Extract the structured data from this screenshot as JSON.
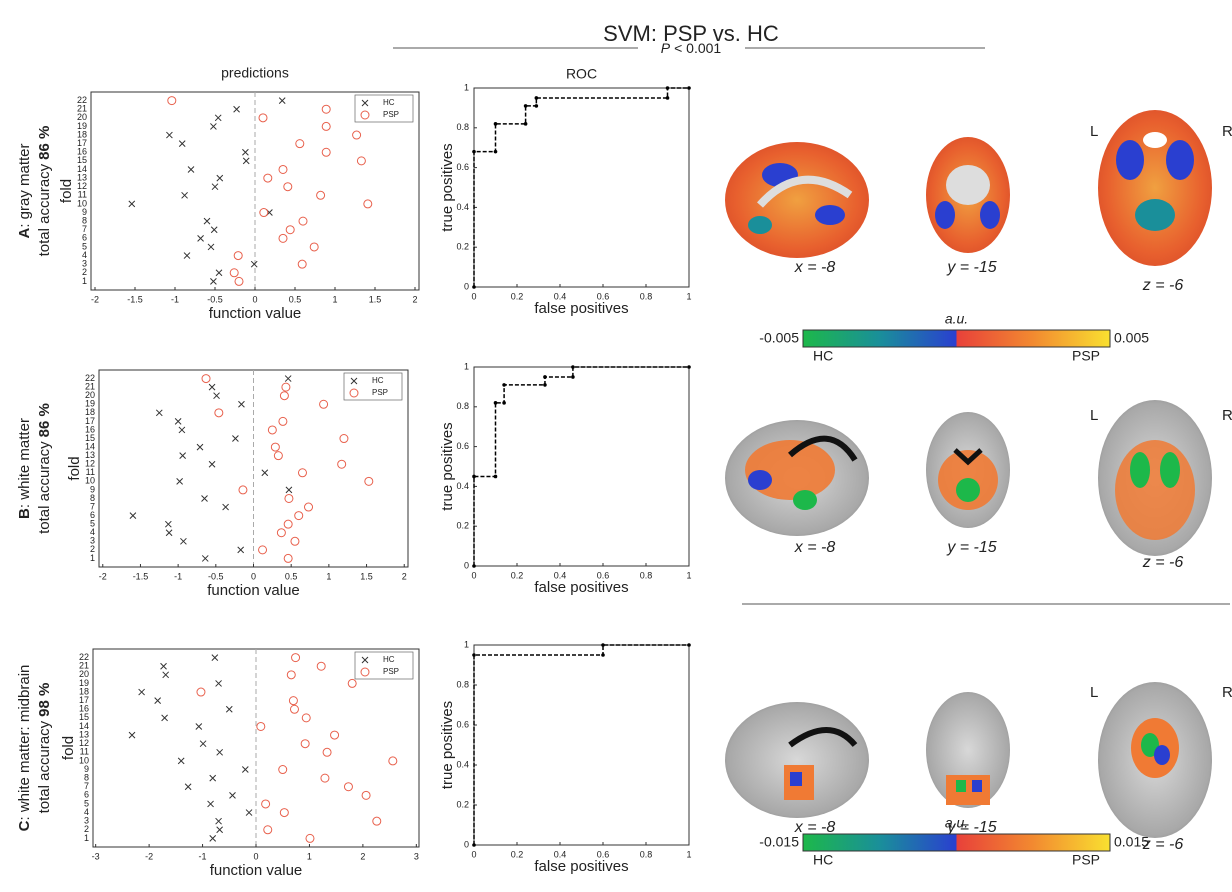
{
  "figure": {
    "title": "SVM: PSP vs. HC",
    "p_symbol": "P",
    "p_text": "< 0.001",
    "brain_rows": [
      {
        "labels": [
          "x = -8",
          "y = -15",
          "z = -6"
        ],
        "left": "L",
        "right": "R"
      },
      {
        "labels": [
          "x = -8",
          "y = -15",
          "z = -6"
        ],
        "left": "L",
        "right": "R"
      },
      {
        "labels": [
          "x = -8",
          "y = -15",
          "z = -6"
        ],
        "left": "L",
        "right": "R"
      }
    ],
    "colorbars": [
      {
        "title": "a.u.",
        "min": -0.005,
        "max": 0.005,
        "low": "HC",
        "high": "PSP"
      },
      {
        "title": "a.u.",
        "min": -0.015,
        "max": 0.015,
        "low": "HC",
        "high": "PSP"
      }
    ]
  },
  "chart_data": [
    {
      "type": "scatter",
      "title": "predictions",
      "panel": "A",
      "ylabel_text": ": gray matter",
      "accuracy_text": "total accuracy",
      "accuracy": "86 %",
      "ylabel": "fold",
      "xlabel": "function value",
      "categories": [
        1,
        2,
        3,
        4,
        5,
        6,
        7,
        8,
        9,
        10,
        11,
        12,
        13,
        14,
        15,
        16,
        17,
        18,
        19,
        20,
        21,
        22
      ],
      "series": [
        {
          "name": "HC",
          "marker": "x",
          "color": "#333333",
          "values": [
            -0.52,
            -0.45,
            -0.01,
            -0.85,
            -0.55,
            -0.68,
            -0.51,
            -0.6,
            0.18,
            -1.54,
            -0.88,
            -0.5,
            -0.44,
            -0.8,
            -0.11,
            -0.12,
            -0.91,
            -1.07,
            -0.52,
            -0.46,
            -0.23,
            0.34
          ]
        },
        {
          "name": "PSP",
          "marker": "o",
          "color": "#e8604c",
          "values": [
            -0.2,
            -0.26,
            0.59,
            -0.21,
            0.74,
            0.35,
            0.44,
            0.6,
            0.11,
            1.41,
            0.82,
            0.41,
            0.16,
            0.35,
            1.33,
            0.89,
            0.56,
            1.27,
            0.89,
            0.1,
            0.89,
            -1.04
          ]
        }
      ],
      "xlim": [
        -2.05,
        2.05
      ],
      "xticks": [
        -2,
        -1.5,
        -1,
        -0.5,
        0,
        0.5,
        1,
        1.5,
        2
      ]
    },
    {
      "type": "line",
      "title": "ROC",
      "xlabel": "false positives",
      "ylabel": "true positives",
      "x": [
        0,
        0,
        0.1,
        0.1,
        0.24,
        0.24,
        0.29,
        0.29,
        0.9,
        0.9,
        1
      ],
      "series": [
        {
          "color": "#000000",
          "values": [
            0,
            0.68,
            0.68,
            0.82,
            0.82,
            0.91,
            0.91,
            0.95,
            0.95,
            1,
            1
          ]
        }
      ],
      "xlim": [
        0,
        1
      ],
      "ylim": [
        0,
        1
      ],
      "xticks": [
        0,
        0.2,
        0.4,
        0.6,
        0.8,
        1
      ],
      "yticks": [
        0,
        0.2,
        0.4,
        0.6,
        0.8,
        1
      ]
    },
    {
      "type": "scatter",
      "panel": "B",
      "ylabel_text": ": white matter",
      "accuracy_text": "total accuracy",
      "accuracy": "86 %",
      "ylabel": "fold",
      "xlabel": "function value",
      "categories": [
        1,
        2,
        3,
        4,
        5,
        6,
        7,
        8,
        9,
        10,
        11,
        12,
        13,
        14,
        15,
        16,
        17,
        18,
        19,
        20,
        21,
        22
      ],
      "series": [
        {
          "name": "HC",
          "marker": "x",
          "color": "#333333",
          "values": [
            -0.64,
            -0.17,
            -0.93,
            -1.12,
            -1.13,
            -1.6,
            -0.37,
            -0.65,
            0.47,
            -0.98,
            0.15,
            -0.55,
            -0.94,
            -0.71,
            -0.24,
            -0.95,
            -1.0,
            -1.25,
            -0.16,
            -0.49,
            -0.55,
            0.46
          ]
        },
        {
          "name": "PSP",
          "marker": "o",
          "color": "#e8604c",
          "values": [
            0.46,
            0.12,
            0.55,
            0.37,
            0.46,
            0.6,
            0.73,
            0.47,
            -0.14,
            1.53,
            0.65,
            1.17,
            0.33,
            0.29,
            1.2,
            0.25,
            0.39,
            -0.46,
            0.93,
            0.41,
            0.43,
            -0.63
          ]
        }
      ],
      "xlim": [
        -2.05,
        2.05
      ],
      "xticks": [
        -2,
        -1.5,
        -1,
        -0.5,
        0,
        0.5,
        1,
        1.5,
        2
      ]
    },
    {
      "type": "line",
      "xlabel": "false positives",
      "ylabel": "true positives",
      "x": [
        0,
        0,
        0.1,
        0.1,
        0.14,
        0.14,
        0.33,
        0.33,
        0.46,
        0.46,
        1
      ],
      "series": [
        {
          "color": "#000000",
          "values": [
            0,
            0.45,
            0.45,
            0.82,
            0.82,
            0.91,
            0.91,
            0.95,
            0.95,
            1,
            1
          ]
        }
      ],
      "xlim": [
        0,
        1
      ],
      "ylim": [
        0,
        1
      ],
      "xticks": [
        0,
        0.2,
        0.4,
        0.6,
        0.8,
        1
      ],
      "yticks": [
        0,
        0.2,
        0.4,
        0.6,
        0.8,
        1
      ]
    },
    {
      "type": "scatter",
      "panel": "C",
      "ylabel_text": ": white matter: midbrain",
      "accuracy_text": "total accuracy",
      "accuracy": "98 %",
      "ylabel": "fold",
      "xlabel": "function value",
      "categories": [
        1,
        2,
        3,
        4,
        5,
        6,
        7,
        8,
        9,
        10,
        11,
        12,
        13,
        14,
        15,
        16,
        17,
        18,
        19,
        20,
        21,
        22
      ],
      "series": [
        {
          "name": "HC",
          "marker": "x",
          "color": "#333333",
          "values": [
            -0.81,
            -0.68,
            -0.7,
            -0.13,
            -0.85,
            -0.44,
            -1.27,
            -0.81,
            -0.2,
            -1.4,
            -0.68,
            -0.99,
            -2.32,
            -1.07,
            -1.71,
            -0.5,
            -1.84,
            -2.14,
            -0.7,
            -1.69,
            -1.73,
            -0.77
          ]
        },
        {
          "name": "PSP",
          "marker": "o",
          "color": "#e8604c",
          "values": [
            1.01,
            0.22,
            2.26,
            0.53,
            0.18,
            2.06,
            1.73,
            1.29,
            0.5,
            2.56,
            1.33,
            0.92,
            1.47,
            0.09,
            0.94,
            0.72,
            0.7,
            -1.03,
            1.8,
            0.66,
            1.22,
            0.74
          ]
        }
      ],
      "xlim": [
        -3.05,
        3.05
      ],
      "xticks": [
        -3,
        -2,
        -1,
        0,
        1,
        2,
        3
      ]
    },
    {
      "type": "line",
      "xlabel": "false positives",
      "ylabel": "true positives",
      "x": [
        0,
        0,
        0.6,
        0.6,
        1
      ],
      "series": [
        {
          "color": "#000000",
          "values": [
            0,
            0.95,
            0.95,
            1,
            1
          ]
        }
      ],
      "xlim": [
        0,
        1
      ],
      "ylim": [
        0,
        1
      ],
      "xticks": [
        0,
        0.2,
        0.4,
        0.6,
        0.8,
        1
      ],
      "yticks": [
        0,
        0.2,
        0.4,
        0.6,
        0.8,
        1
      ]
    }
  ]
}
